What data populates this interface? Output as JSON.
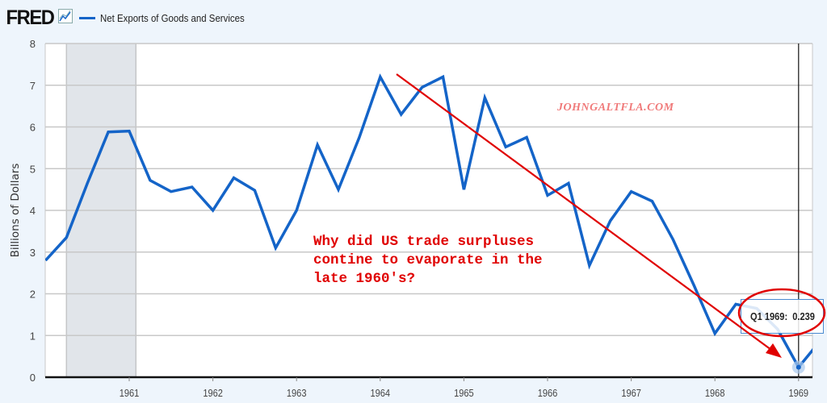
{
  "header": {
    "logo": "FRED",
    "logo_icon": "chart-line-icon",
    "legend_label": "Net Exports of Goods and Services",
    "legend_color": "#1464c8"
  },
  "annotation": {
    "question": "Why did US trade surpluses\ncontine to evaporate in the\nlate 1960's?",
    "watermark": "JOHNGALTFLA.COM",
    "color": "#e00000"
  },
  "tooltip": {
    "label": "Q1 1969:",
    "value": "0.239"
  },
  "chart_data": {
    "type": "line",
    "title": "Net Exports of Goods and Services",
    "xlabel": "",
    "ylabel": "Billions of Dollars",
    "ylim": [
      0,
      8
    ],
    "yticks": [
      "0",
      "1",
      "2",
      "3",
      "4",
      "5",
      "6",
      "7",
      "8"
    ],
    "xticks": [
      "1961",
      "1962",
      "1963",
      "1964",
      "1965",
      "1966",
      "1967",
      "1968",
      "1969"
    ],
    "xlim": [
      1960.0,
      1969.17
    ],
    "grid": true,
    "recession_shading": [
      1960.25,
      1961.08
    ],
    "series": [
      {
        "name": "Net Exports of Goods and Services",
        "color": "#1464c8",
        "x": [
          1960.0,
          1960.25,
          1960.5,
          1960.75,
          1961.0,
          1961.25,
          1961.5,
          1961.75,
          1962.0,
          1962.25,
          1962.5,
          1962.75,
          1963.0,
          1963.25,
          1963.5,
          1963.75,
          1964.0,
          1964.25,
          1964.5,
          1964.75,
          1965.0,
          1965.25,
          1965.5,
          1965.75,
          1966.0,
          1966.25,
          1966.5,
          1966.75,
          1967.0,
          1967.25,
          1967.5,
          1967.75,
          1968.0,
          1968.25,
          1968.5,
          1968.75,
          1969.0,
          1969.25
        ],
        "values": [
          2.8,
          3.35,
          4.65,
          5.88,
          5.9,
          4.72,
          4.45,
          4.56,
          4.0,
          4.78,
          4.48,
          3.1,
          4.0,
          5.57,
          4.5,
          5.75,
          7.2,
          6.3,
          6.95,
          7.2,
          4.5,
          6.7,
          5.52,
          5.75,
          4.36,
          4.65,
          2.68,
          3.75,
          4.45,
          4.22,
          3.3,
          2.2,
          1.05,
          1.75,
          1.65,
          1.15,
          0.239,
          0.85
        ]
      }
    ],
    "highlight": {
      "x": 1969.0,
      "value": 0.239,
      "label": "Q1 1969"
    }
  }
}
